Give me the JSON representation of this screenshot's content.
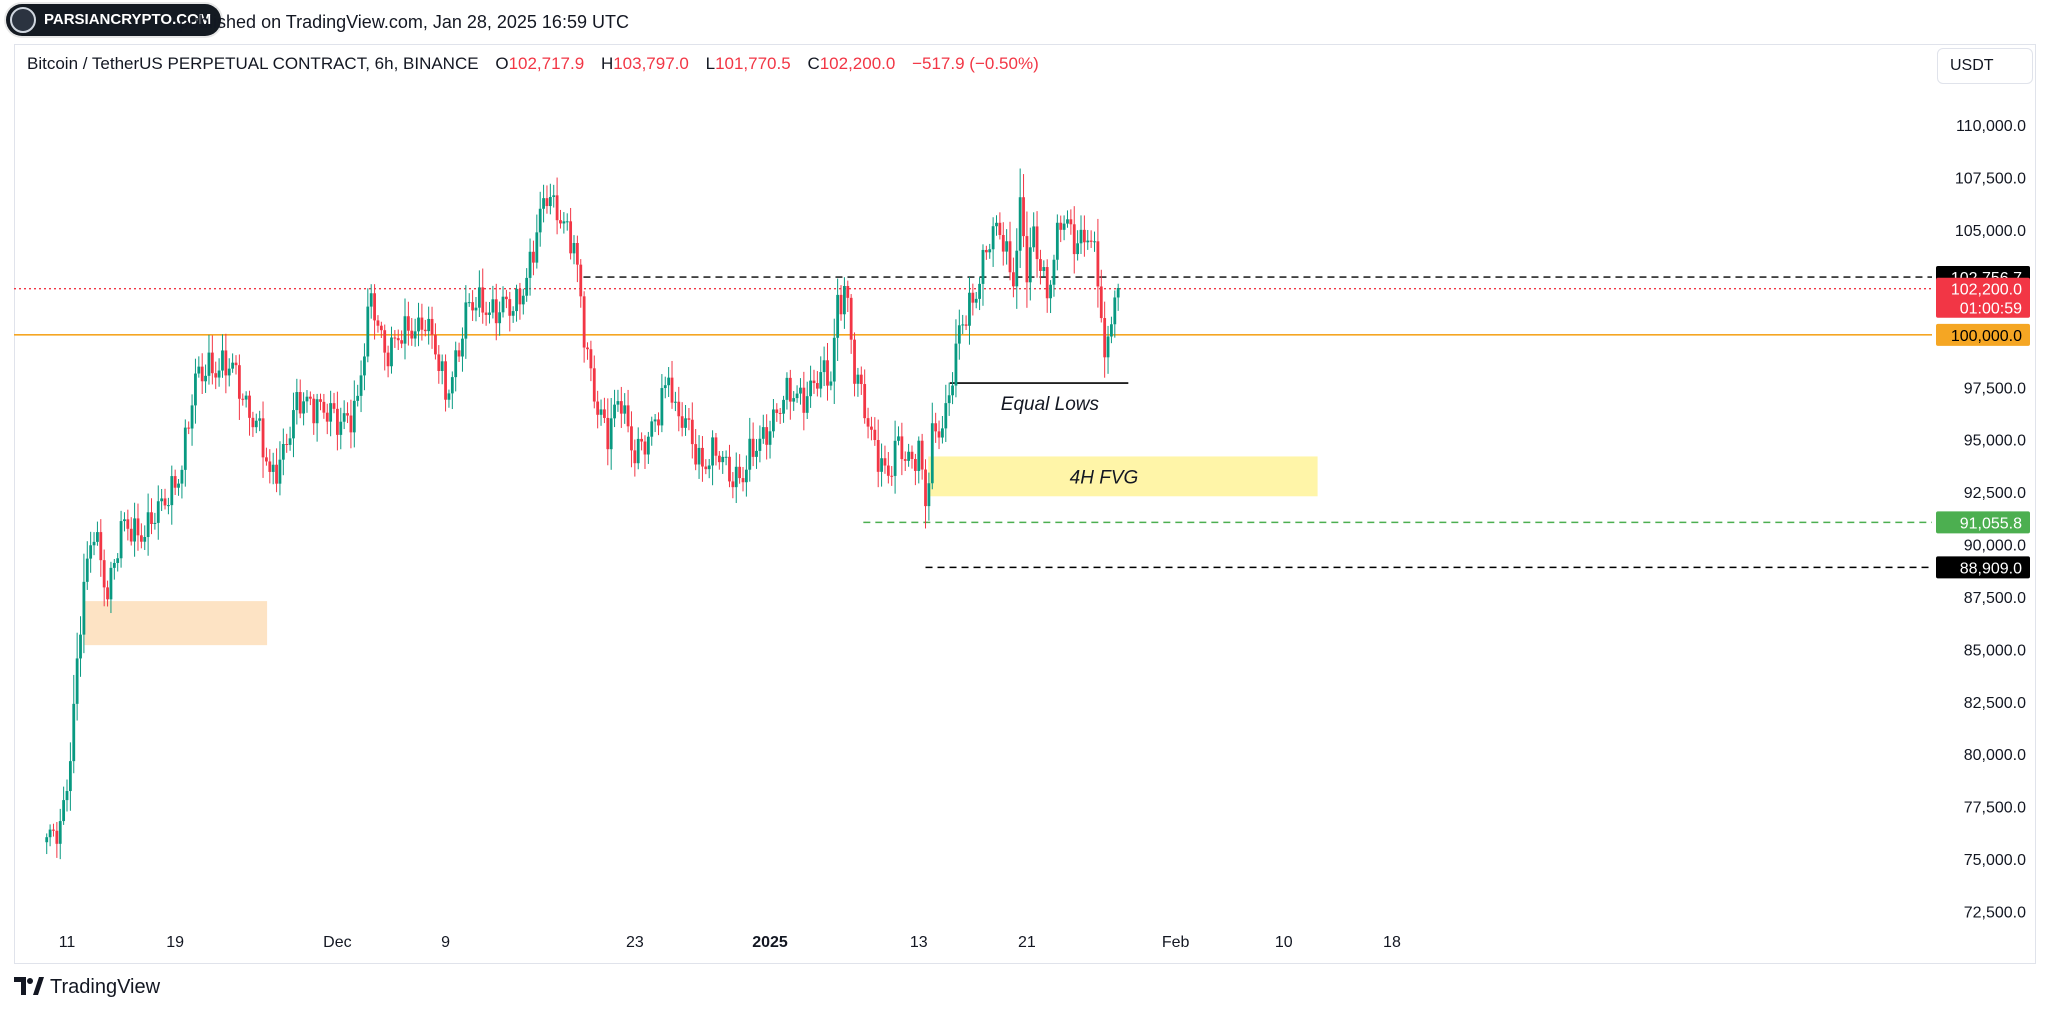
{
  "header": {
    "logo_text": "PARSIANCRYPTO.COM",
    "published": "published on TradingView.com, Jan 28, 2025 16:59 UTC",
    "currency": "USDT"
  },
  "legend": {
    "symbol": "Bitcoin / TetherUS PERPETUAL CONTRACT, 6h, BINANCE",
    "o_label": "O",
    "o_value": "102,717.9",
    "h_label": "H",
    "h_value": "103,797.0",
    "l_label": "L",
    "l_value": "101,770.5",
    "c_label": "C",
    "c_value": "102,200.0",
    "change": "−517.9 (−0.50%)"
  },
  "footer": {
    "brand": "TradingView"
  },
  "colors": {
    "up": "#089981",
    "down": "#f23645",
    "support": "#f5a623",
    "fvg": "#fff5a8",
    "orderblock": "#fde3c4",
    "green_level": "#4caf50",
    "black_label": "#000000"
  },
  "chart_data": {
    "type": "candlestick",
    "timeframe": "6h",
    "ylim": [
      72500,
      110000
    ],
    "y_ticks": [
      "110,000.0",
      "107,500.0",
      "105,000.0",
      "97,500.0",
      "95,000.0",
      "92,500.0",
      "90,000.0",
      "87,500.0",
      "85,000.0",
      "82,500.0",
      "80,000.0",
      "77,500.0",
      "75,000.0",
      "72,500.0"
    ],
    "y_tick_values": [
      110000,
      107500,
      105000,
      97500,
      95000,
      92500,
      90000,
      87500,
      85000,
      82500,
      80000,
      77500,
      75000,
      72500
    ],
    "x_ticks": [
      "11",
      "19",
      "Dec",
      "9",
      "23",
      "2025",
      "13",
      "21",
      "Feb",
      "10",
      "18"
    ],
    "x_tick_days": [
      0,
      8,
      20,
      28,
      42,
      52,
      63,
      71,
      82,
      90,
      98
    ],
    "date_range": [
      "2024-11-11",
      "2025-01-28"
    ],
    "anchor_closes": [
      {
        "d": -1.5,
        "c": 75800
      },
      {
        "d": -0.5,
        "c": 76100
      },
      {
        "d": 0.3,
        "c": 80500
      },
      {
        "d": 0.9,
        "c": 86000
      },
      {
        "d": 1.3,
        "c": 88000
      },
      {
        "d": 2.0,
        "c": 90500
      },
      {
        "d": 3.0,
        "c": 88000
      },
      {
        "d": 4.0,
        "c": 90500
      },
      {
        "d": 5.0,
        "c": 90600
      },
      {
        "d": 7.0,
        "c": 91500
      },
      {
        "d": 8.5,
        "c": 94000
      },
      {
        "d": 9.5,
        "c": 97500
      },
      {
        "d": 10.5,
        "c": 98800
      },
      {
        "d": 12.5,
        "c": 98000
      },
      {
        "d": 14.0,
        "c": 95800
      },
      {
        "d": 15.0,
        "c": 93000
      },
      {
        "d": 17.0,
        "c": 96400
      },
      {
        "d": 18.5,
        "c": 97000
      },
      {
        "d": 20.0,
        "c": 95500
      },
      {
        "d": 21.5,
        "c": 97000
      },
      {
        "d": 22.5,
        "c": 101500
      },
      {
        "d": 23.5,
        "c": 99500
      },
      {
        "d": 25.0,
        "c": 99800
      },
      {
        "d": 26.5,
        "c": 101000
      },
      {
        "d": 28.0,
        "c": 97000
      },
      {
        "d": 29.5,
        "c": 101000
      },
      {
        "d": 31.0,
        "c": 101500
      },
      {
        "d": 33.0,
        "c": 101000
      },
      {
        "d": 34.0,
        "c": 103000
      },
      {
        "d": 35.5,
        "c": 106500
      },
      {
        "d": 36.5,
        "c": 106000
      },
      {
        "d": 37.5,
        "c": 104000
      },
      {
        "d": 38.3,
        "c": 99700
      },
      {
        "d": 39.0,
        "c": 97500
      },
      {
        "d": 40.0,
        "c": 95000
      },
      {
        "d": 41.0,
        "c": 97000
      },
      {
        "d": 42.0,
        "c": 94500
      },
      {
        "d": 43.0,
        "c": 94600
      },
      {
        "d": 44.5,
        "c": 98500
      },
      {
        "d": 45.0,
        "c": 96000
      },
      {
        "d": 46.0,
        "c": 95400
      },
      {
        "d": 47.0,
        "c": 94000
      },
      {
        "d": 48.0,
        "c": 94100
      },
      {
        "d": 49.0,
        "c": 93600
      },
      {
        "d": 50.0,
        "c": 93300
      },
      {
        "d": 51.0,
        "c": 94500
      },
      {
        "d": 52.0,
        "c": 96000
      },
      {
        "d": 53.5,
        "c": 97000
      },
      {
        "d": 55.0,
        "c": 97500
      },
      {
        "d": 56.5,
        "c": 98000
      },
      {
        "d": 57.0,
        "c": 101800
      },
      {
        "d": 57.6,
        "c": 102500
      },
      {
        "d": 58.2,
        "c": 98000
      },
      {
        "d": 59.0,
        "c": 96500
      },
      {
        "d": 60.0,
        "c": 94500
      },
      {
        "d": 60.7,
        "c": 92800
      },
      {
        "d": 61.5,
        "c": 94800
      },
      {
        "d": 62.5,
        "c": 94200
      },
      {
        "d": 63.0,
        "c": 94500
      },
      {
        "d": 63.5,
        "c": 91500
      },
      {
        "d": 64.0,
        "c": 95000
      },
      {
        "d": 65.0,
        "c": 96500
      },
      {
        "d": 66.0,
        "c": 99800
      },
      {
        "d": 67.0,
        "c": 101800
      },
      {
        "d": 68.0,
        "c": 104200
      },
      {
        "d": 69.0,
        "c": 104800
      },
      {
        "d": 70.0,
        "c": 103000
      },
      {
        "d": 70.6,
        "c": 106500
      },
      {
        "d": 71.0,
        "c": 102500
      },
      {
        "d": 71.5,
        "c": 104500
      },
      {
        "d": 72.5,
        "c": 102300
      },
      {
        "d": 73.5,
        "c": 105300
      },
      {
        "d": 74.5,
        "c": 104500
      },
      {
        "d": 75.5,
        "c": 105100
      },
      {
        "d": 76.2,
        "c": 103000
      },
      {
        "d": 76.8,
        "c": 98000
      },
      {
        "d": 77.3,
        "c": 101800
      },
      {
        "d": 77.8,
        "c": 102200
      }
    ],
    "price_labels": [
      {
        "text": "102,756.7",
        "value": 102756.7,
        "bg": "#000000",
        "fg": "#ffffff"
      },
      {
        "text": "102,200.0",
        "sub": "01:00:59",
        "value": 102200,
        "bg": "#f23645",
        "fg": "#ffffff"
      },
      {
        "text": "100,000.0",
        "value": 100000,
        "bg": "#f5a623",
        "fg": "#000000"
      },
      {
        "text": "91,055.8",
        "value": 91055.8,
        "bg": "#4caf50",
        "fg": "#ffffff"
      },
      {
        "text": "88,909.0",
        "value": 88909,
        "bg": "#000000",
        "fg": "#ffffff"
      }
    ],
    "levels": [
      {
        "name": "support-100k",
        "value": 100000,
        "style": "solid",
        "color": "#f5a623"
      },
      {
        "name": "dashed-102756",
        "value": 102756.7,
        "style": "dashed",
        "color": "#000000",
        "from_day": 38.2
      },
      {
        "name": "current-price",
        "value": 102200,
        "style": "dotted",
        "color": "#f23645"
      },
      {
        "name": "green-91055",
        "value": 91055.8,
        "style": "dashed",
        "color": "#4caf50",
        "from_day": 58.9
      },
      {
        "name": "black-88909",
        "value": 88909,
        "style": "dashed",
        "color": "#000000",
        "from_day": 63.5
      },
      {
        "name": "equal-lows",
        "value": 97700,
        "style": "solid",
        "color": "#000000",
        "from_day": 65.3,
        "to_day": 78.5
      }
    ],
    "zones": [
      {
        "name": "4h-fvg",
        "label": "4H FVG",
        "y_top": 94200,
        "y_bottom": 92300,
        "from_day": 63.7,
        "to_day": 92.5,
        "color": "#fff5a8"
      },
      {
        "name": "order-block",
        "label": "",
        "y_top": 87300,
        "y_bottom": 85200,
        "from_day": 1.3,
        "to_day": 14.8,
        "color": "#fde3c4"
      }
    ],
    "annotations": [
      {
        "text": "Equal Lows",
        "value": 96700,
        "day": 72.7
      },
      {
        "text": "4H FVG",
        "value": 93200,
        "day": 76.7
      }
    ]
  }
}
